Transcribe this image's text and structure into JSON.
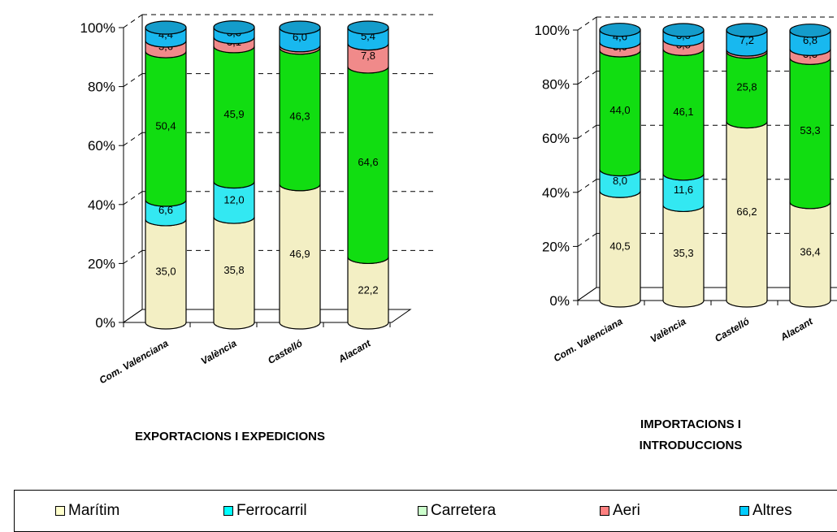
{
  "chart_data": [
    {
      "type": "bar",
      "stacked": true,
      "percent": true,
      "title": "EXPORTACIONS I EXPEDICIONS",
      "categories": [
        "Com. Valenciana",
        "València",
        "Castelló",
        "Alacant"
      ],
      "y_ticks": [
        "0%",
        "20%",
        "40%",
        "60%",
        "80%",
        "100%"
      ],
      "ylim": [
        0,
        100
      ],
      "grid": true,
      "series": [
        {
          "name": "Marítim",
          "values": [
            35.0,
            35.8,
            46.9,
            22.2
          ],
          "labels": [
            "35,0",
            "35,8",
            "46,9",
            "22,2"
          ]
        },
        {
          "name": "Ferrocarril",
          "values": [
            6.6,
            12.0,
            0.0,
            0.0
          ],
          "labels": [
            "6,6",
            "12,0",
            "",
            ""
          ]
        },
        {
          "name": "Carretera",
          "values": [
            50.4,
            45.9,
            46.3,
            64.6
          ],
          "labels": [
            "50,4",
            "45,9",
            "46,3",
            "64,6"
          ]
        },
        {
          "name": "Aeri",
          "values": [
            3.6,
            3.1,
            0.8,
            7.8
          ],
          "labels": [
            "3,6",
            "3,1",
            "",
            "7,8"
          ]
        },
        {
          "name": "Altres",
          "values": [
            4.4,
            3.3,
            6.0,
            5.4
          ],
          "labels": [
            "4,4",
            "3,3",
            "6,0",
            "5,4"
          ]
        }
      ]
    },
    {
      "type": "bar",
      "stacked": true,
      "percent": true,
      "title": "IMPORTACIONS I INTRODUCCIONS",
      "categories": [
        "Com. Valenciana",
        "València",
        "Castelló",
        "Alacant"
      ],
      "y_ticks": [
        "0%",
        "20%",
        "40%",
        "60%",
        "80%",
        "100%"
      ],
      "ylim": [
        0,
        100
      ],
      "grid": true,
      "series": [
        {
          "name": "Marítim",
          "values": [
            40.5,
            35.3,
            66.2,
            36.4
          ],
          "labels": [
            "40,5",
            "35,3",
            "66,2",
            "36,4"
          ]
        },
        {
          "name": "Ferrocarril",
          "values": [
            8.0,
            11.6,
            0.0,
            0.0
          ],
          "labels": [
            "8,0",
            "11,6",
            "",
            ""
          ]
        },
        {
          "name": "Carretera",
          "values": [
            44.0,
            46.1,
            25.8,
            53.3
          ],
          "labels": [
            "44,0",
            "46,1",
            "25,8",
            "53,3"
          ]
        },
        {
          "name": "Aeri",
          "values": [
            3.0,
            3.5,
            0.8,
            3.3
          ],
          "labels": [
            "3,0",
            "3,5",
            "",
            "3,3"
          ]
        },
        {
          "name": "Altres",
          "values": [
            4.6,
            3.5,
            7.2,
            6.8
          ],
          "labels": [
            "4,6",
            "3,5",
            "7,2",
            "6,8"
          ]
        }
      ]
    }
  ],
  "legend": {
    "placement": "bottom",
    "items": [
      {
        "label": "Marítim",
        "color": "#ffffcc"
      },
      {
        "label": "Ferrocarril",
        "color": "#00ffff"
      },
      {
        "label": "Carretera",
        "color": "#ccffcc"
      },
      {
        "label": "Aeri",
        "color": "#ff8080"
      },
      {
        "label": "Altres",
        "color": "#00ccff"
      }
    ]
  },
  "colors": {
    "series_fill": [
      "#f3efc4",
      "#33e8f2",
      "#11dd11",
      "#f08a8a",
      "#18b8ef"
    ]
  }
}
